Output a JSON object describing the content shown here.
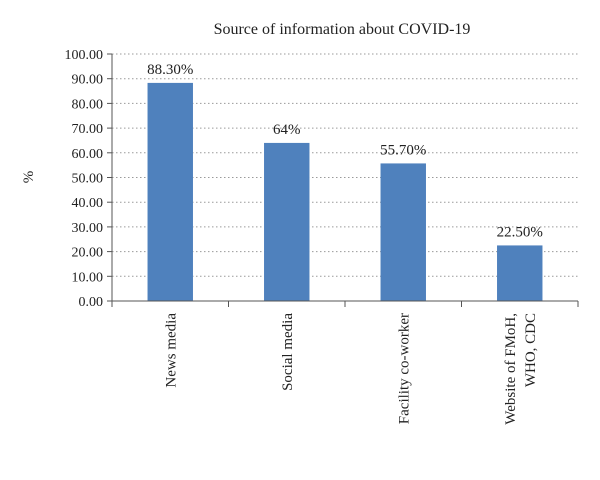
{
  "chart_data": {
    "type": "bar",
    "title": "Source of information about COVID-19",
    "xlabel": "",
    "ylabel": "%",
    "ylim": [
      0,
      100
    ],
    "y_ticks": [
      "0.00",
      "10.00",
      "20.00",
      "30.00",
      "40.00",
      "50.00",
      "60.00",
      "70.00",
      "80.00",
      "90.00",
      "100.00"
    ],
    "grid": true,
    "grid_style": "dotted",
    "legend": "none",
    "bar_color": "#4f81bd",
    "categories": [
      [
        "News media"
      ],
      [
        "Social media"
      ],
      [
        "Facility co-worker"
      ],
      [
        "Website of FMoH,",
        "WHO, CDC"
      ]
    ],
    "values": [
      88.3,
      64,
      55.7,
      22.5
    ],
    "data_labels": [
      "88.30%",
      "64%",
      "55.70%",
      "22.50%"
    ]
  }
}
